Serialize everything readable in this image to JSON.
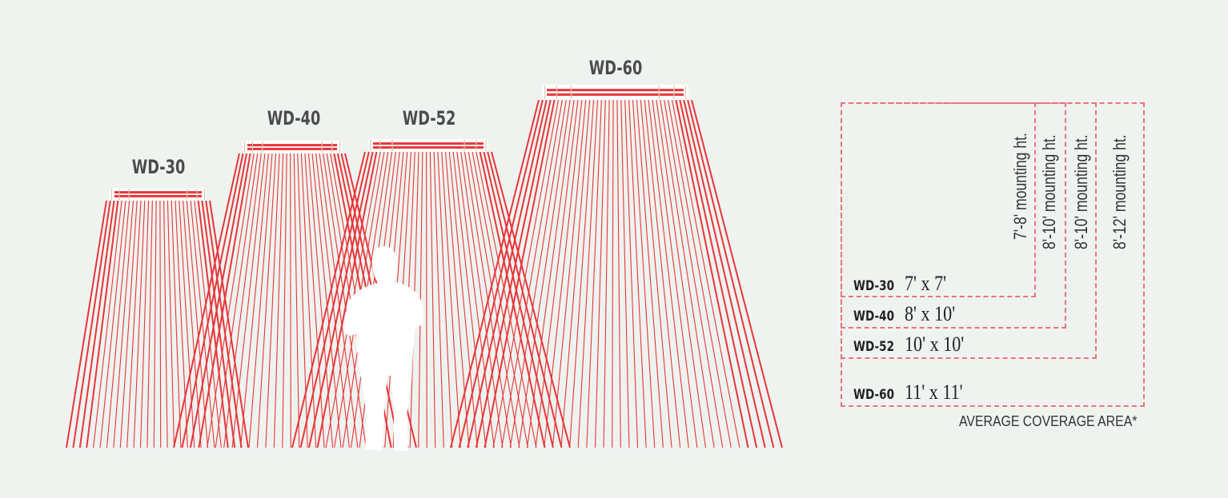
{
  "heaters": [
    {
      "model": "WD-30"
    },
    {
      "model": "WD-40"
    },
    {
      "model": "WD-52"
    },
    {
      "model": "WD-60"
    }
  ],
  "coverage": {
    "rows": [
      {
        "model": "WD-30",
        "area": "7' x 7'",
        "mounting": "7'-8' mounting ht."
      },
      {
        "model": "WD-40",
        "area": "8' x 10'",
        "mounting": "8'-10' mounting ht."
      },
      {
        "model": "WD-52",
        "area": "10' x 10'",
        "mounting": "8'-10' mounting ht."
      },
      {
        "model": "WD-60",
        "area": "11' x 11'",
        "mounting": "8'-12' mounting ht."
      }
    ],
    "caption": "AVERAGE COVERAGE AREA*"
  },
  "colors": {
    "background": "#eff3ef",
    "ray": "#e8353a",
    "dash": "#e8747c",
    "heater_body": "#ffffff"
  }
}
